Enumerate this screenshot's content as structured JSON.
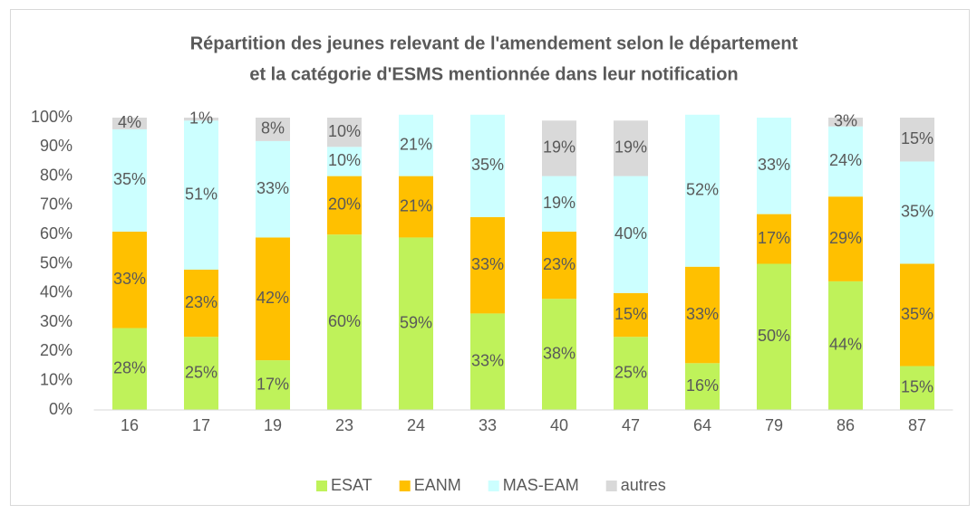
{
  "chart_data": {
    "type": "stacked_bar",
    "title": [
      "Répartition des jeunes relevant de l'amendement selon le département",
      "et la catégorie d'ESMS mentionnée dans leur notification"
    ],
    "categories": [
      "16",
      "17",
      "19",
      "23",
      "24",
      "33",
      "40",
      "47",
      "64",
      "79",
      "86",
      "87"
    ],
    "series": [
      {
        "name": "ESAT",
        "color": "#bff25a",
        "values": [
          28,
          25,
          17,
          60,
          59,
          33,
          38,
          25,
          16,
          50,
          44,
          15
        ],
        "value_labels": [
          "28%",
          "25%",
          "17%",
          "60%",
          "59%",
          "33%",
          "38%",
          "25%",
          "16%",
          "50%",
          "44%",
          "15%"
        ]
      },
      {
        "name": "EANM",
        "color": "#ffc000",
        "values": [
          33,
          23,
          42,
          20,
          21,
          33,
          23,
          15,
          33,
          17,
          29,
          35
        ],
        "value_labels": [
          "33%",
          "23%",
          "42%",
          "20%",
          "21%",
          "33%",
          "23%",
          "15%",
          "33%",
          "17%",
          "29%",
          "35%"
        ]
      },
      {
        "name": "MAS-EAM",
        "color": "#ccffff",
        "values": [
          35,
          51,
          33,
          10,
          21,
          35,
          19,
          40,
          52,
          33,
          24,
          35
        ],
        "value_labels": [
          "35%",
          "51%",
          "33%",
          "10%",
          "21%",
          "35%",
          "19%",
          "40%",
          "52%",
          "33%",
          "24%",
          "35%"
        ]
      },
      {
        "name": "autres",
        "color": "#d9d9d9",
        "values": [
          4,
          1,
          8,
          10,
          null,
          null,
          19,
          19,
          null,
          null,
          3,
          15
        ],
        "value_labels": [
          "4%",
          "1%",
          "8%",
          "10%",
          null,
          null,
          "19%",
          "19%",
          null,
          null,
          "3%",
          "15%"
        ]
      }
    ],
    "ylim": [
      0,
      100
    ],
    "yticks": [
      {
        "value": 0,
        "label": "0%"
      },
      {
        "value": 10,
        "label": "10%"
      },
      {
        "value": 20,
        "label": "20%"
      },
      {
        "value": 30,
        "label": "30%"
      },
      {
        "value": 40,
        "label": "40%"
      },
      {
        "value": 50,
        "label": "50%"
      },
      {
        "value": 60,
        "label": "60%"
      },
      {
        "value": 70,
        "label": "70%"
      },
      {
        "value": 80,
        "label": "80%"
      },
      {
        "value": 90,
        "label": "90%"
      },
      {
        "value": 100,
        "label": "100%"
      }
    ],
    "grid": false,
    "legend": "bottom"
  }
}
